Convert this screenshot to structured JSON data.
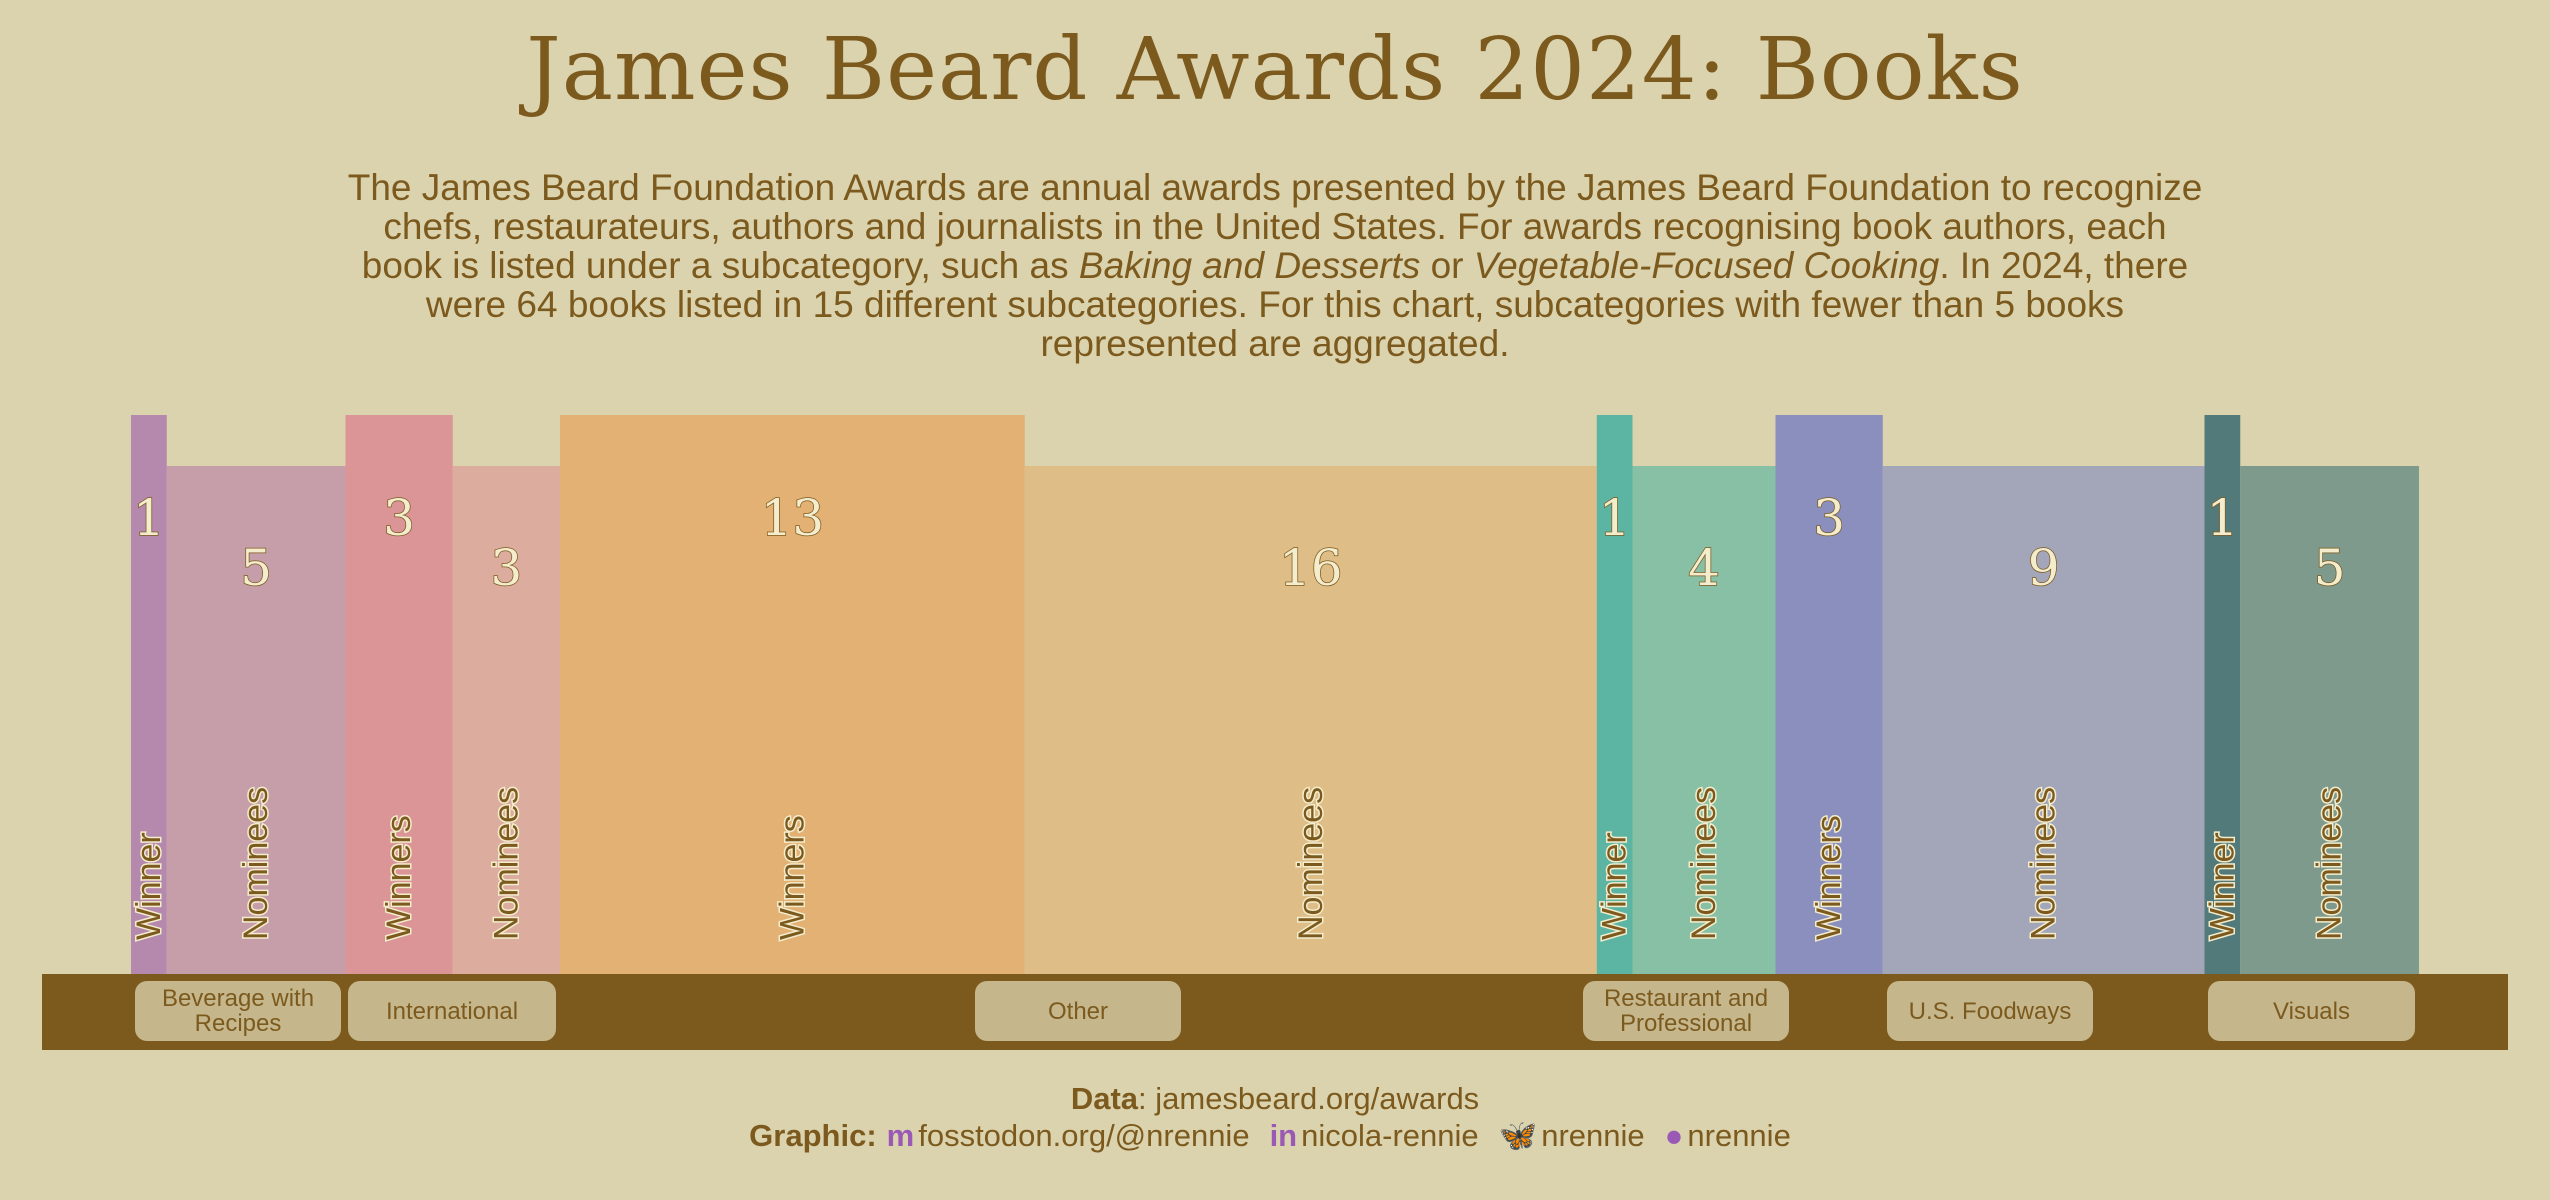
{
  "title": "James Beard Awards 2024: Books",
  "subtitle": {
    "p1": "The James Beard Foundation Awards are annual awards presented by the James Beard Foundation to recognize chefs, restaurateurs, authors and journalists in the United States. For awards recognising book authors, each book is listed under a subcategory, such as ",
    "i1": "Baking and Desserts",
    "p2": " or ",
    "i2": "Vegetable-Focused Cooking",
    "p3": ". In 2024, there were 64 books listed in 15 different subcategories. For this chart, subcategories with fewer than 5 books represented are aggregated."
  },
  "chart_data": {
    "type": "bar",
    "categories": [
      "Beverage with Recipes",
      "International",
      "Other",
      "Restaurant and Professional",
      "U.S. Foodways",
      "Visuals"
    ],
    "series": [
      {
        "name": "Winners",
        "values": [
          1,
          3,
          13,
          1,
          3,
          1
        ]
      },
      {
        "name": "Nominees",
        "values": [
          5,
          3,
          16,
          4,
          9,
          5
        ]
      }
    ],
    "bars": [
      {
        "category": "Beverage with Recipes",
        "label": "Winner",
        "value": 1,
        "color": "#b588ad"
      },
      {
        "category": "Beverage with Recipes",
        "label": "Nominees",
        "value": 5,
        "color": "#c59ea9"
      },
      {
        "category": "International",
        "label": "Winners",
        "value": 3,
        "color": "#db9597"
      },
      {
        "category": "International",
        "label": "Nominees",
        "value": 3,
        "color": "#dcad9e"
      },
      {
        "category": "Other",
        "label": "Winners",
        "value": 13,
        "color": "#e2b173"
      },
      {
        "category": "Other",
        "label": "Nominees",
        "value": 16,
        "color": "#dfbd86"
      },
      {
        "category": "Restaurant and Professional",
        "label": "Winner",
        "value": 1,
        "color": "#5bb5a2"
      },
      {
        "category": "Restaurant and Professional",
        "label": "Nominees",
        "value": 4,
        "color": "#87c0a5"
      },
      {
        "category": "U.S. Foodways",
        "label": "Winners",
        "value": 3,
        "color": "#8a8fbd"
      },
      {
        "category": "U.S. Foodways",
        "label": "Nominees",
        "value": 9,
        "color": "#a3a6b8"
      },
      {
        "category": "Visuals",
        "label": "Winner",
        "value": 1,
        "color": "#527a7a"
      },
      {
        "category": "Visuals",
        "label": "Nominees",
        "value": 5,
        "color": "#7e9a8c"
      }
    ],
    "xlabel": "",
    "ylabel": "",
    "shelf_color": "#7c5a1e",
    "tag_color": "#c5b78b"
  },
  "caption": {
    "data_label": "Data",
    "data_value": ": jamesbeard.org/awards",
    "graphic_label": "Graphic:",
    "items": [
      {
        "icon": "mastodon-icon",
        "glyph": "m",
        "text": "fosstodon.org/@nrennie"
      },
      {
        "icon": "linkedin-icon",
        "glyph": "in",
        "text": "nicola-rennie"
      },
      {
        "icon": "bluesky-icon",
        "glyph": "🦋",
        "text": "nrennie"
      },
      {
        "icon": "github-icon",
        "glyph": "●",
        "text": "nrennie"
      }
    ]
  }
}
